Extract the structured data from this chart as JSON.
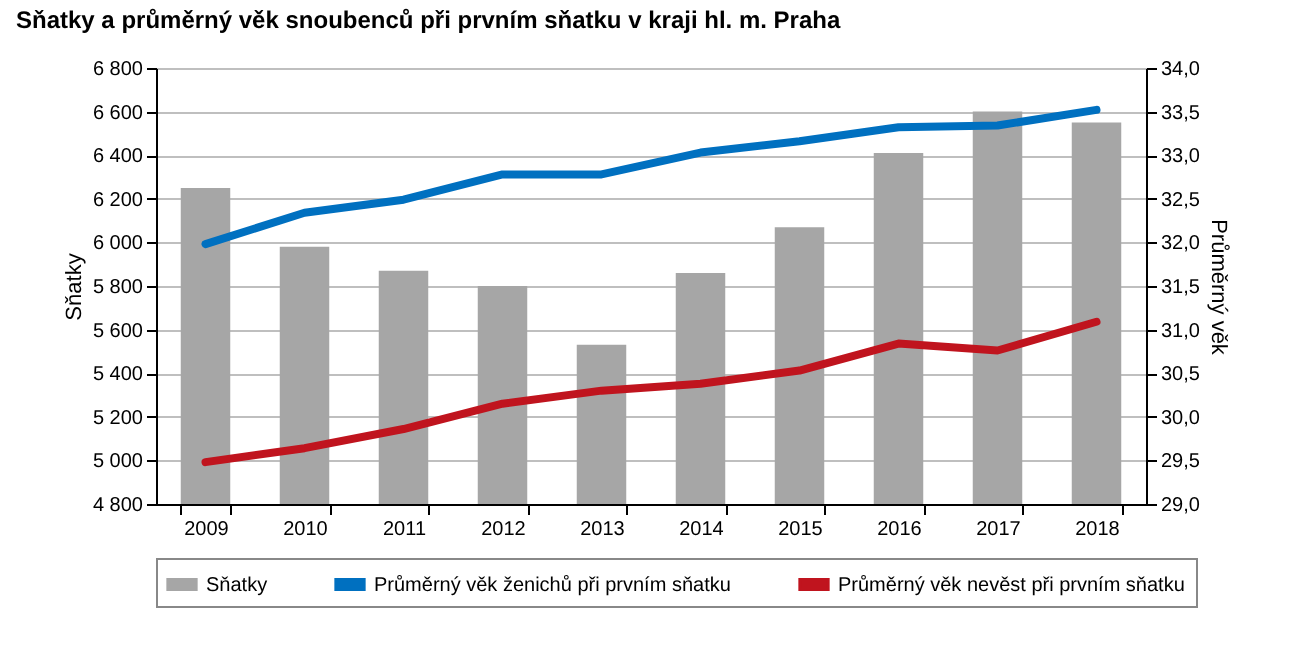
{
  "chart_data": {
    "type": "bar",
    "title": "Sňatky a průměrný věk snoubenců při prvním sňatku v kraji hl. m. Praha",
    "ylabel": "Sňatky",
    "y2label": "Průměrný věk",
    "categories": [
      "2009",
      "2010",
      "2011",
      "2012",
      "2013",
      "2014",
      "2015",
      "2016",
      "2017",
      "2018"
    ],
    "series": [
      {
        "name": "Sňatky",
        "color": "#a6a6a6",
        "values": [
          6250,
          5980,
          5870,
          5800,
          5530,
          5860,
          6070,
          6410,
          6600,
          6550
        ]
      },
      {
        "name": "Průměrný věk ženichů při prvním sňatku",
        "type": "line",
        "axis": "y2",
        "color": "#0070c0",
        "values": [
          31.98,
          32.34,
          32.49,
          32.78,
          32.78,
          33.03,
          33.16,
          33.32,
          33.34,
          33.52
        ]
      },
      {
        "name": "Průměrný věk nevěst při prvním sňatku",
        "type": "line",
        "axis": "y2",
        "color": "#c0141e",
        "values": [
          29.48,
          29.64,
          29.86,
          30.15,
          30.3,
          30.38,
          30.53,
          30.84,
          30.76,
          31.09
        ]
      }
    ],
    "ylim": [
      4800,
      6800
    ],
    "yticks": [
      {
        "value": 4800,
        "label": "4 800"
      },
      {
        "value": 5000,
        "label": "5 000"
      },
      {
        "value": 5200,
        "label": "5 200"
      },
      {
        "value": 5400,
        "label": "5 400"
      },
      {
        "value": 5600,
        "label": "5 600"
      },
      {
        "value": 5800,
        "label": "5 800"
      },
      {
        "value": 6000,
        "label": "6 000"
      },
      {
        "value": 6200,
        "label": "6 200"
      },
      {
        "value": 6400,
        "label": "6 400"
      },
      {
        "value": 6600,
        "label": "6 600"
      },
      {
        "value": 6800,
        "label": "6 800"
      }
    ],
    "y2lim": [
      29,
      34
    ],
    "y2ticks": [
      {
        "value": 29,
        "label": "29,0"
      },
      {
        "value": 29.5,
        "label": "29,5"
      },
      {
        "value": 30,
        "label": "30,0"
      },
      {
        "value": 30.5,
        "label": "30,5"
      },
      {
        "value": 31,
        "label": "31,0"
      },
      {
        "value": 31.5,
        "label": "31,5"
      },
      {
        "value": 32,
        "label": "32,0"
      },
      {
        "value": 32.5,
        "label": "32,5"
      },
      {
        "value": 33,
        "label": "33,0"
      },
      {
        "value": 33.5,
        "label": "33,5"
      },
      {
        "value": 34,
        "label": "34,0"
      }
    ],
    "grid": "y",
    "legend": "bottom"
  }
}
